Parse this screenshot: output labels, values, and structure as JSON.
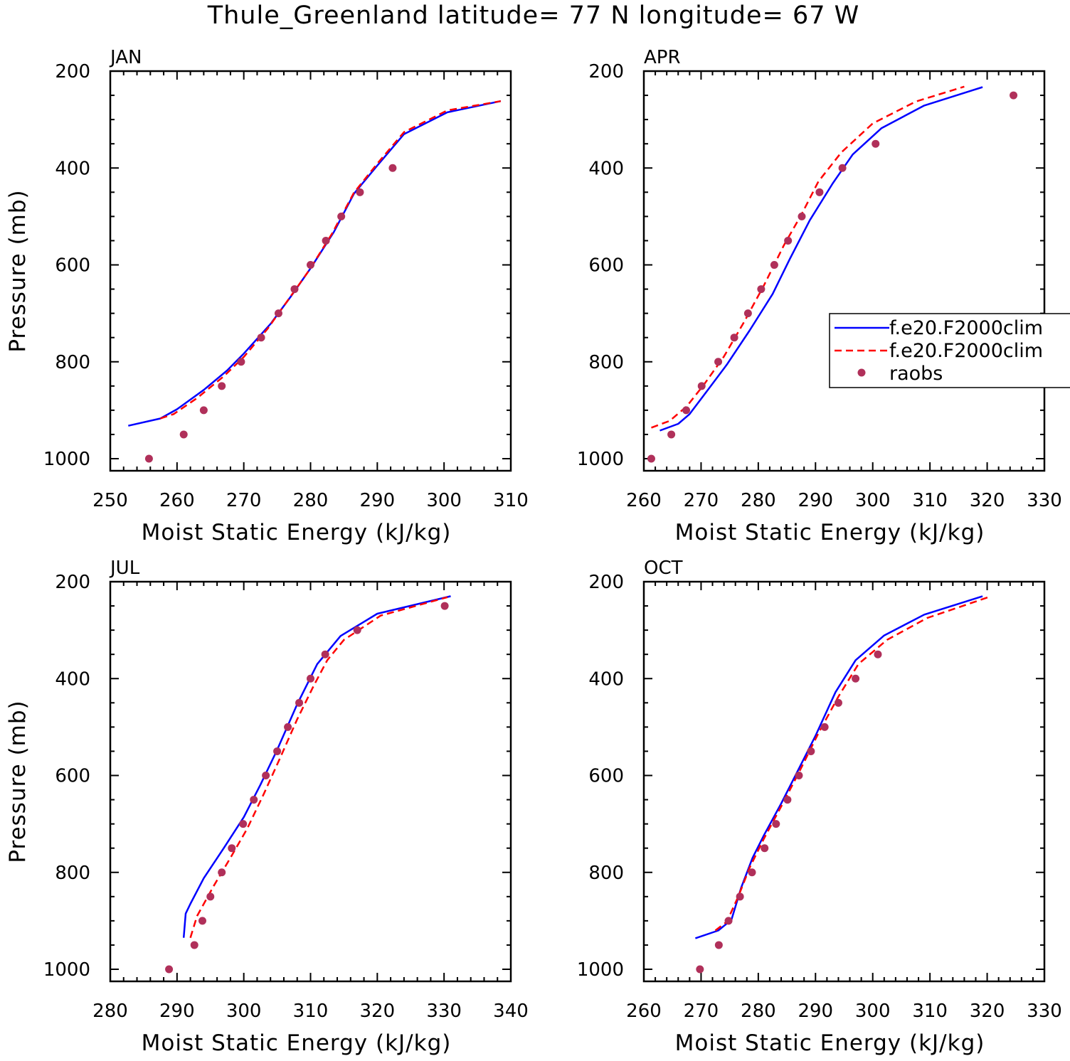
{
  "title": "Thule_Greenland  latitude= 77 N longitude= 67 W",
  "legend": {
    "entries": [
      {
        "label": "f.e20.F2000clim",
        "style": "solid",
        "color": "#0000ff"
      },
      {
        "label": "f.e20.F2000clim",
        "style": "dashed",
        "color": "#ff0000"
      },
      {
        "label": "raobs",
        "style": "marker",
        "color": "#b0305a"
      }
    ]
  },
  "chart_data": [
    {
      "type": "line",
      "panel": "JAN",
      "title": "JAN",
      "xlabel": "Moist Static Energy (kJ/kg)",
      "ylabel": "Pressure (mb)",
      "xlim": [
        250,
        310
      ],
      "ylim": [
        1040,
        200
      ],
      "x_ticks": [
        250,
        260,
        270,
        280,
        290,
        300,
        310
      ],
      "y_ticks": [
        200,
        400,
        600,
        800,
        1000
      ],
      "series": [
        {
          "name": "f.e20.F2000clim",
          "style": "solid",
          "color": "#0000ff",
          "x": [
            252.7,
            257.5,
            260.0,
            264.0,
            267.5,
            270.0,
            274.0,
            277.0,
            280.0,
            283.5,
            286.5,
            290.0,
            294.0,
            300.5,
            308.5
          ],
          "y": [
            932,
            917,
            898,
            858,
            818,
            783,
            722,
            666,
            607,
            532,
            453,
            395,
            330,
            285,
            262
          ]
        },
        {
          "name": "f.e20.F2000clim",
          "style": "dashed",
          "color": "#ff0000",
          "x": [
            257.5,
            259.5,
            263.0,
            267.0,
            270.0,
            273.5,
            276.5,
            279.8,
            283.2,
            286.5,
            290.0,
            294.0,
            300.5,
            308.5
          ],
          "y": [
            917,
            908,
            875,
            830,
            790,
            733,
            675,
            611,
            536,
            451,
            391,
            326,
            281,
            262
          ]
        },
        {
          "name": "raobs",
          "style": "marker",
          "color": "#b0305a",
          "x": [
            255.8,
            261.0,
            264.0,
            266.7,
            269.6,
            272.6,
            275.2,
            277.6,
            280.0,
            282.3,
            284.6,
            287.4,
            292.3
          ],
          "y": [
            1000,
            950,
            900,
            850,
            800,
            750,
            700,
            650,
            600,
            550,
            500,
            450,
            400
          ]
        }
      ]
    },
    {
      "type": "line",
      "panel": "APR",
      "title": "APR",
      "xlabel": "Moist Static Energy (kJ/kg)",
      "ylabel": "",
      "xlim": [
        260,
        330
      ],
      "ylim": [
        1040,
        200
      ],
      "x_ticks": [
        260,
        270,
        280,
        290,
        300,
        310,
        320,
        330
      ],
      "y_ticks": [
        200,
        400,
        600,
        800,
        1000
      ],
      "series": [
        {
          "name": "f.e20.F2000clim",
          "style": "solid",
          "color": "#0000ff",
          "x": [
            262.8,
            266.0,
            268.0,
            271.0,
            274.5,
            278.5,
            282.5,
            285.5,
            289.0,
            293.0,
            296.5,
            301.5,
            309.0,
            319.2
          ],
          "y": [
            942,
            928,
            908,
            861,
            806,
            735,
            660,
            588,
            508,
            432,
            372,
            318,
            271,
            233
          ]
        },
        {
          "name": "f.e20.F2000clim",
          "style": "dashed",
          "color": "#ff0000",
          "x": [
            261.3,
            264.5,
            267.5,
            270.5,
            274.0,
            277.5,
            281.0,
            284.5,
            287.5,
            290.5,
            294.5,
            300.0,
            307.5,
            316.0
          ],
          "y": [
            936,
            922,
            892,
            847,
            789,
            718,
            642,
            559,
            497,
            428,
            368,
            308,
            263,
            232
          ]
        },
        {
          "name": "raobs",
          "style": "marker",
          "color": "#b0305a",
          "x": [
            261.3,
            264.8,
            267.4,
            270.1,
            273.0,
            275.8,
            278.2,
            280.5,
            282.8,
            285.2,
            287.6,
            290.7,
            294.7,
            300.5,
            324.6
          ],
          "y": [
            1000,
            950,
            900,
            850,
            800,
            750,
            700,
            650,
            600,
            550,
            500,
            450,
            400,
            350,
            250
          ]
        }
      ]
    },
    {
      "type": "line",
      "panel": "JUL",
      "title": "JUL",
      "xlabel": "Moist Static Energy (kJ/kg)",
      "ylabel": "Pressure (mb)",
      "xlim": [
        280,
        340
      ],
      "ylim": [
        1040,
        200
      ],
      "x_ticks": [
        280,
        290,
        300,
        310,
        320,
        330,
        340
      ],
      "y_ticks": [
        200,
        400,
        600,
        800,
        1000
      ],
      "series": [
        {
          "name": "f.e20.F2000clim",
          "style": "solid",
          "color": "#0000ff",
          "x": [
            291.0,
            291.3,
            292.0,
            294.0,
            297.0,
            300.0,
            302.5,
            305.0,
            308.0,
            311.0,
            314.5,
            320.0,
            331.0
          ],
          "y": [
            935,
            885,
            865,
            812,
            750,
            686,
            619,
            547,
            453,
            370,
            312,
            266,
            230
          ]
        },
        {
          "name": "f.e20.F2000clim",
          "style": "dashed",
          "color": "#ff0000",
          "x": [
            292.0,
            293.0,
            295.5,
            298.0,
            300.5,
            303.0,
            305.5,
            308.0,
            310.5,
            312.5,
            315.0,
            320.5,
            330.5
          ],
          "y": [
            935,
            890,
            828,
            770,
            710,
            638,
            562,
            484,
            414,
            362,
            320,
            270,
            232
          ]
        },
        {
          "name": "raobs",
          "style": "marker",
          "color": "#b0305a",
          "x": [
            288.8,
            292.6,
            293.8,
            295.0,
            296.7,
            298.2,
            299.9,
            301.5,
            303.3,
            305.0,
            306.6,
            308.3,
            310.0,
            312.2,
            317.0,
            330.1
          ],
          "y": [
            1000,
            950,
            900,
            850,
            800,
            750,
            700,
            650,
            600,
            550,
            500,
            450,
            400,
            350,
            300,
            250
          ]
        }
      ]
    },
    {
      "type": "line",
      "panel": "OCT",
      "title": "OCT",
      "xlabel": "Moist Static Energy (kJ/kg)",
      "ylabel": "",
      "xlim": [
        260,
        330
      ],
      "ylim": [
        1040,
        200
      ],
      "x_ticks": [
        260,
        270,
        280,
        290,
        300,
        310,
        320,
        330
      ],
      "y_ticks": [
        200,
        400,
        600,
        800,
        1000
      ],
      "series": [
        {
          "name": "f.e20.F2000clim",
          "style": "solid",
          "color": "#0000ff",
          "x": [
            269.0,
            273.0,
            275.3,
            277.0,
            279.0,
            281.0,
            284.0,
            287.0,
            290.0,
            293.5,
            297.0,
            302.0,
            309.0,
            319.2
          ],
          "y": [
            936,
            920,
            898,
            832,
            770,
            723,
            658,
            588,
            518,
            428,
            362,
            311,
            268,
            230
          ]
        },
        {
          "name": "f.e20.F2000clim",
          "style": "dashed",
          "color": "#ff0000",
          "x": [
            272.5,
            274.5,
            276.5,
            278.5,
            281.0,
            284.0,
            287.0,
            290.5,
            294.0,
            297.5,
            302.5,
            309.5,
            320.2
          ],
          "y": [
            920,
            902,
            850,
            790,
            730,
            664,
            596,
            513,
            437,
            370,
            320,
            275,
            232
          ]
        },
        {
          "name": "raobs",
          "style": "marker",
          "color": "#b0305a",
          "x": [
            269.8,
            273.1,
            274.8,
            276.8,
            278.9,
            281.1,
            283.1,
            285.1,
            287.1,
            289.2,
            291.6,
            294.0,
            297.0,
            300.9
          ],
          "y": [
            1000,
            950,
            900,
            850,
            800,
            750,
            700,
            650,
            600,
            550,
            500,
            450,
            400,
            350
          ]
        }
      ]
    }
  ]
}
